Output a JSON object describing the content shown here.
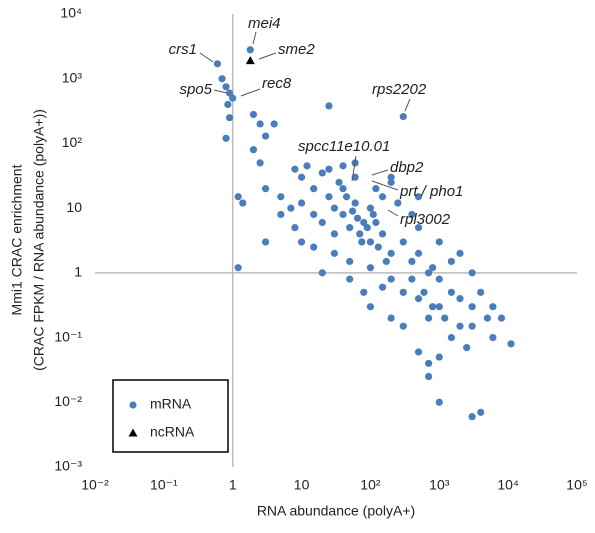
{
  "chart_data": {
    "type": "scatter",
    "xlog": true,
    "ylog": true,
    "xlabel": "RNA abundance (polyA+)",
    "ylabel": [
      "Mmi1 CRAC enrichment",
      "(CRAC FPKM / RNA abundance (polyA+))"
    ],
    "xlim": [
      0.01,
      100000
    ],
    "ylim": [
      0.001,
      10000
    ],
    "xticks": [
      {
        "value": 0.01,
        "label": "10⁻²"
      },
      {
        "value": 0.1,
        "label": "10⁻¹"
      },
      1,
      10,
      {
        "value": 100,
        "label": "10²"
      },
      {
        "value": 1000,
        "label": "10³"
      },
      {
        "value": 10000,
        "label": "10⁴"
      },
      {
        "value": 100000,
        "label": "10⁵"
      }
    ],
    "yticks": [
      {
        "value": 0.001,
        "label": "10⁻³"
      },
      {
        "value": 0.01,
        "label": "10⁻²"
      },
      {
        "value": 0.1,
        "label": "10⁻¹"
      },
      1,
      10,
      {
        "value": 100,
        "label": "10²"
      },
      {
        "value": 1000,
        "label": "10³"
      },
      {
        "value": 10000,
        "label": "10⁴"
      }
    ],
    "series": [
      {
        "name": "mRNA",
        "color": "#4a7ebb",
        "marker": "circle",
        "x": [
          0.6,
          1.8,
          0.9,
          1.0,
          0.7,
          0.8,
          0.85,
          0.9,
          0.8,
          2,
          2.5,
          3,
          4,
          25,
          300,
          2,
          2.5,
          3,
          1.2,
          1.4,
          5,
          3,
          1.2,
          5,
          200,
          200,
          8,
          10,
          12,
          15,
          20,
          25,
          30,
          40,
          50,
          60,
          70,
          80,
          100,
          20,
          30,
          15,
          10,
          7,
          8,
          40,
          60,
          100,
          120,
          150,
          200,
          300,
          400,
          500,
          700,
          1000,
          1500,
          2000,
          3000,
          5000,
          6000,
          2000,
          1000,
          700,
          500,
          300,
          200,
          100,
          50,
          30,
          20,
          15,
          10,
          50,
          80,
          100,
          150,
          200,
          300,
          400,
          600,
          800,
          1200,
          1500,
          2500,
          500,
          700,
          1000,
          3000,
          4000,
          1000,
          700,
          11000,
          8000,
          3000,
          2000,
          1000,
          500,
          400,
          250,
          150,
          120,
          60,
          40,
          500,
          4000,
          6000,
          3000,
          1500,
          800,
          25,
          35,
          45,
          55,
          65,
          75,
          90,
          110,
          130,
          170
        ],
        "values": [
          1700,
          2800,
          600,
          500,
          1000,
          750,
          400,
          250,
          120,
          280,
          200,
          130,
          200,
          380,
          260,
          80,
          50,
          20,
          15,
          12,
          15,
          3,
          1.2,
          8,
          30,
          25,
          40,
          30,
          45,
          20,
          35,
          15,
          10,
          8,
          5,
          12,
          4,
          6,
          3,
          6,
          4,
          8,
          12,
          10,
          5,
          20,
          30,
          10,
          6,
          4,
          2,
          3,
          1.5,
          2,
          1,
          0.8,
          0.5,
          0.4,
          0.3,
          0.2,
          0.1,
          0.15,
          0.3,
          0.2,
          0.4,
          0.5,
          0.8,
          1.2,
          1.5,
          2,
          1,
          2.5,
          3,
          0.8,
          0.5,
          0.3,
          0.6,
          0.2,
          0.15,
          0.8,
          0.5,
          0.3,
          0.2,
          0.1,
          0.07,
          0.06,
          0.04,
          0.05,
          0.006,
          0.007,
          0.01,
          0.025,
          0.08,
          0.2,
          1,
          2,
          3,
          5,
          8,
          12,
          15,
          20,
          50,
          45,
          15,
          0.5,
          0.3,
          0.15,
          1.5,
          1.2,
          40,
          25,
          15,
          9,
          7,
          3,
          5,
          8,
          2.5,
          1.5
        ]
      },
      {
        "name": "ncRNA",
        "color": "#000000",
        "marker": "triangle",
        "x": [
          1.8
        ],
        "values": [
          1900
        ]
      }
    ],
    "annotations": [
      "crs1",
      "mei4",
      "sme2",
      "spo5",
      "rec8",
      "rps2202",
      "spcc11e10.01",
      "dbp2",
      "prt / pho1",
      "rpl3002"
    ]
  }
}
